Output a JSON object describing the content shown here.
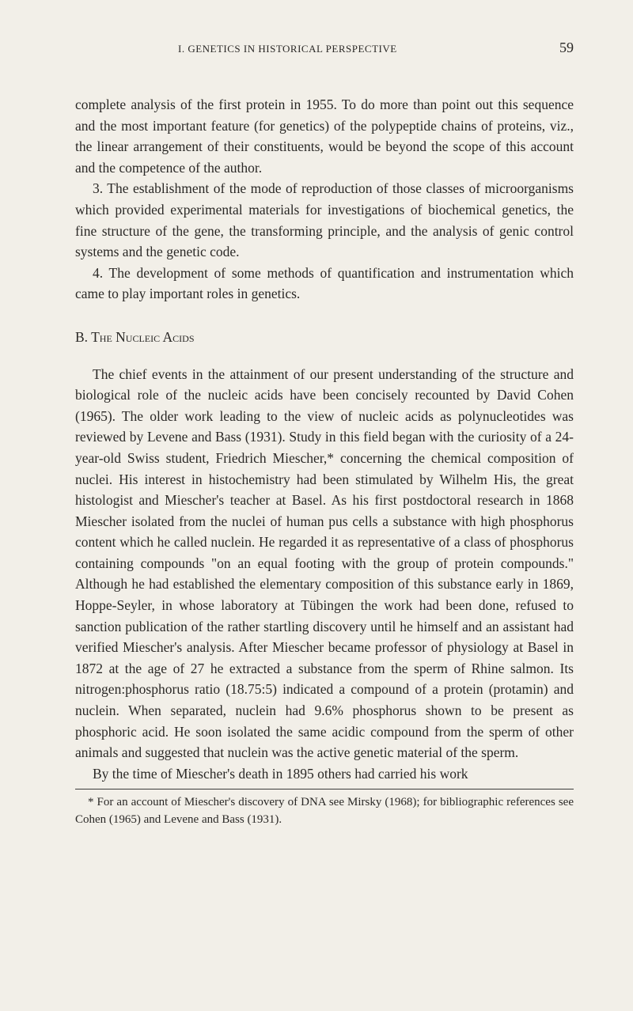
{
  "header": {
    "running_head": "I.   GENETICS  IN  HISTORICAL  PERSPECTIVE",
    "page_number": "59"
  },
  "paragraphs": {
    "p1": "complete analysis of the first protein in 1955. To do more than point out this sequence and the most important feature (for genetics) of the poly­peptide chains of proteins, viz., the linear arrangement of their con­stituents, would be beyond the scope of this account and the competence of the author.",
    "p2": "3. The establishment of the mode of reproduction of those classes of microorganisms which provided experimental materials for investigations of biochemical genetics, the fine structure of the gene, the transforming principle, and the analysis of genic control systems and the genetic code.",
    "p3": "4. The development of some methods of quantification and instrumen­tation which came to play important roles in genetics.",
    "section_b": "B.  The Nucleic Acids",
    "p4": "The chief events in the attainment of our present understanding of the structure and biological role of the nucleic acids have been concisely recounted by David Cohen (1965). The older work leading to the view of nucleic acids as polynucleotides was reviewed by Levene and Bass (1931). Study in this field began with the curiosity of a 24-year-old Swiss student, Friedrich Miescher,* concerning the chemical composition of nuclei. His interest in histochemistry had been stimulated by Wilhelm His, the great histologist and Miescher's teacher at Basel. As his first postdoctoral research in 1868 Miescher isolated from the nuclei of human pus cells a substance with high phosphorus content which he called nuclein. He regarded it as representative of a class of phosphorus containing compounds \"on an equal footing with the group of protein compounds.\" Although he had established the elementary composition of this substance early in 1869, Hoppe-Seyler, in whose laboratory at Tübingen the work had been done, refused to sanction publication of the rather startling discovery until he himself and an assistant had verified Miescher's analysis. After Miescher became professor of physi­ology at Basel in 1872 at the age of 27 he extracted a substance from the sperm of Rhine salmon. Its nitrogen:phosphorus ratio (18.75:5) indi­cated a compound of a protein (protamin) and nuclein. When separated, nuclein had 9.6% phosphorus shown to be present as phosphoric acid. He soon isolated the same acidic compound from the sperm of other animals and suggested that nuclein was the active genetic material of the sperm.",
    "p5": "By the time of Miescher's death in 1895 others had carried his work"
  },
  "footnote": "* For an account of Miescher's discovery of DNA see Mirsky (1968); for biblio­graphic references see Cohen (1965) and Levene and Bass (1931).",
  "colors": {
    "background": "#f2efe8",
    "text": "#2a2826"
  },
  "typography": {
    "body_font_size": 17.5,
    "body_line_height": 1.52,
    "header_font_size": 13,
    "page_num_font_size": 18,
    "footnote_font_size": 15
  }
}
